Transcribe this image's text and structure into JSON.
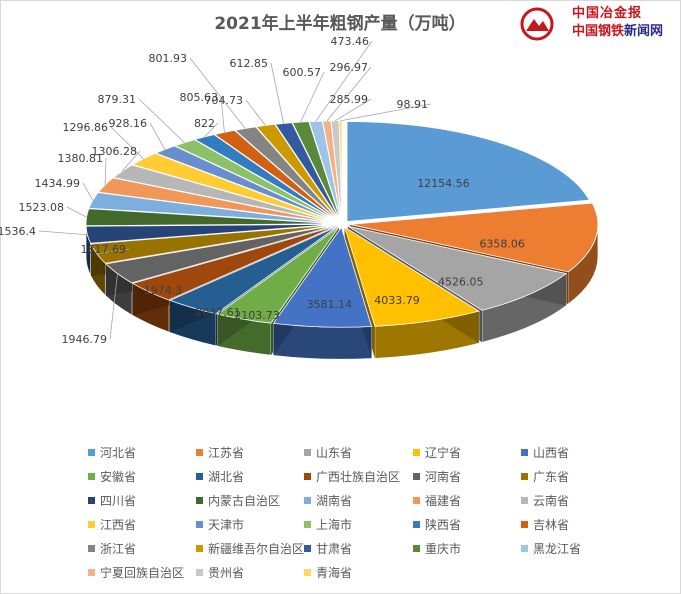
{
  "logo": {
    "brand_line1": "中国冶金报",
    "brand_line2_a": "中国钢铁",
    "brand_line2_b": "新闻网"
  },
  "chart_data": {
    "type": "pie",
    "style": "3d-exploded",
    "title": "2021年上半年粗钢产量（万吨）",
    "legend_position": "bottom",
    "slices": [
      {
        "label": "河北省",
        "value": 12154.56,
        "color": "#5b9bd5",
        "data_label": "12154.56"
      },
      {
        "label": "江苏省",
        "value": 6358.06,
        "color": "#ed7d31",
        "data_label": "6358.06"
      },
      {
        "label": "山东省",
        "value": 4526.05,
        "color": "#a5a5a5",
        "data_label": "4526.05"
      },
      {
        "label": "辽宁省",
        "value": 4033.79,
        "color": "#ffc000",
        "data_label": "4033.79"
      },
      {
        "label": "山西省",
        "value": 3581.14,
        "color": "#4472c4",
        "data_label": "3581.14"
      },
      {
        "label": "安徽省",
        "value": 2103.73,
        "color": "#70ad47",
        "data_label": "2103.73"
      },
      {
        "label": "湖北省",
        "value": 2047.61,
        "color": "#255e91",
        "data_label": "2047.61"
      },
      {
        "label": "广西壮族自治区",
        "value": 1974.3,
        "color": "#9e480e",
        "data_label": "1974.3"
      },
      {
        "label": "河南省",
        "value": 1946.79,
        "color": "#636363",
        "data_label": "1946.79"
      },
      {
        "label": "广东省",
        "value": 1817.69,
        "color": "#997300",
        "data_label": "1817.69"
      },
      {
        "label": "四川省",
        "value": 1536.4,
        "color": "#264478",
        "data_label": "1536.4"
      },
      {
        "label": "内蒙古自治区",
        "value": 1523.08,
        "color": "#43682b",
        "data_label": "1523.08"
      },
      {
        "label": "湖南省",
        "value": 1434.99,
        "color": "#7cafdd",
        "data_label": "1434.99"
      },
      {
        "label": "福建省",
        "value": 1380.81,
        "color": "#f1975a",
        "data_label": "1380.81"
      },
      {
        "label": "云南省",
        "value": 1306.28,
        "color": "#b7b7b7",
        "data_label": "1306.28"
      },
      {
        "label": "江西省",
        "value": 1296.86,
        "color": "#ffcd33",
        "data_label": "1296.86"
      },
      {
        "label": "天津市",
        "value": 928.16,
        "color": "#698ed0",
        "data_label": "928.16"
      },
      {
        "label": "上海市",
        "value": 879.31,
        "color": "#8cc168",
        "data_label": "879.31"
      },
      {
        "label": "陕西省",
        "value": 822,
        "color": "#327dc2",
        "data_label": "822"
      },
      {
        "label": "吉林省",
        "value": 805.63,
        "color": "#d26012",
        "data_label": "805.63"
      },
      {
        "label": "浙江省",
        "value": 801.93,
        "color": "#848484",
        "data_label": "801.93"
      },
      {
        "label": "新疆维吾尔自治区",
        "value": 704.73,
        "color": "#cc9a00",
        "data_label": "704.73"
      },
      {
        "label": "甘肃省",
        "value": 612.85,
        "color": "#335aa1",
        "data_label": "612.85"
      },
      {
        "label": "重庆市",
        "value": 600.57,
        "color": "#5a8a39",
        "data_label": "600.57"
      },
      {
        "label": "黑龙江省",
        "value": 473.46,
        "color": "#9dc3e6",
        "data_label": "473.46"
      },
      {
        "label": "宁夏回族自治区",
        "value": 296.97,
        "color": "#f4b183",
        "data_label": "296.97"
      },
      {
        "label": "贵州省",
        "value": 285.99,
        "color": "#c9c9c9",
        "data_label": "285.99"
      },
      {
        "label": "青海省",
        "value": 98.91,
        "color": "#ffd966",
        "data_label": "98.91"
      }
    ]
  }
}
